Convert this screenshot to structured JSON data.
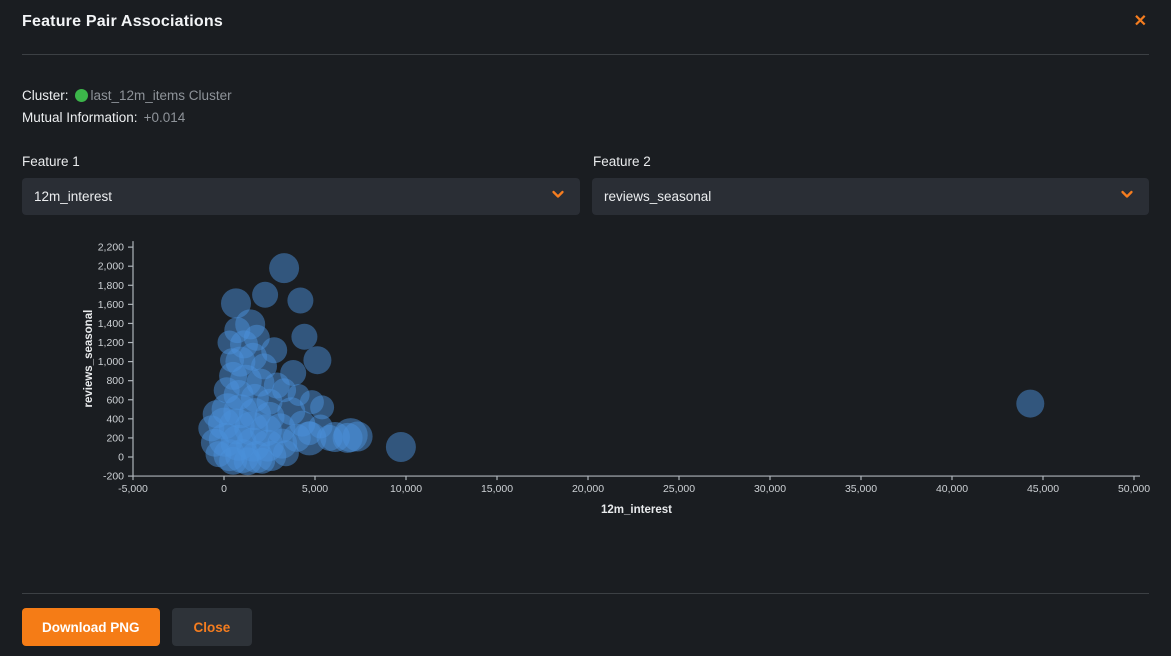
{
  "header": {
    "title": "Feature Pair Associations",
    "close_icon": "✕"
  },
  "info": {
    "cluster_label": "Cluster:",
    "cluster_dot_color": "#3cb54a",
    "cluster_name": "last_12m_items Cluster",
    "mutual_info_label": "Mutual Information:",
    "mutual_info_value": "+0.014"
  },
  "feature1": {
    "label": "Feature 1",
    "value": "12m_interest"
  },
  "feature2": {
    "label": "Feature 2",
    "value": "reviews_seasonal"
  },
  "footer": {
    "download_label": "Download PNG",
    "close_label": "Close"
  },
  "colors": {
    "background": "#1a1d21",
    "accent_orange": "#f57d1f",
    "button_orange": "#f57c16",
    "secondary_button": "#2e3339",
    "dropdown_bg": "#2a2e35",
    "bubble_blue": "#4a90d9",
    "axis_gray": "#aeb4ba",
    "tick_label_gray": "#cdd1d5",
    "muted_text": "#8e9399"
  },
  "chart_data": {
    "type": "scatter",
    "title": "",
    "xlabel": "12m_interest",
    "ylabel": "reviews_seasonal",
    "xlim": [
      -5000,
      50000
    ],
    "ylim": [
      -200,
      2200
    ],
    "x_tick_step": 5000,
    "y_tick_step": 200,
    "grid": false,
    "legend": false,
    "point_style": {
      "fill": "#4a90d9",
      "opacity": 0.5
    },
    "points_format": "[x, y, radius_px]",
    "points": [
      [
        3300,
        1980,
        15
      ],
      [
        2260,
        1700,
        13
      ],
      [
        660,
        1610,
        15
      ],
      [
        4200,
        1640,
        13
      ],
      [
        1440,
        1390,
        15
      ],
      [
        730,
        1330,
        13
      ],
      [
        4420,
        1260,
        13
      ],
      [
        2760,
        1120,
        13
      ],
      [
        5130,
        1015,
        14
      ],
      [
        440,
        1015,
        12
      ],
      [
        1100,
        1180,
        14
      ],
      [
        1800,
        1250,
        13
      ],
      [
        300,
        1200,
        12
      ],
      [
        900,
        1000,
        15
      ],
      [
        1600,
        1050,
        14
      ],
      [
        2200,
        950,
        13
      ],
      [
        3800,
        880,
        13
      ],
      [
        4830,
        575,
        12
      ],
      [
        5390,
        520,
        12
      ],
      [
        500,
        850,
        14
      ],
      [
        1200,
        800,
        16
      ],
      [
        2000,
        780,
        14
      ],
      [
        2900,
        750,
        13
      ],
      [
        3300,
        700,
        12
      ],
      [
        4100,
        650,
        11
      ],
      [
        150,
        700,
        13
      ],
      [
        800,
        650,
        15
      ],
      [
        1700,
        620,
        14
      ],
      [
        2500,
        580,
        13
      ],
      [
        -400,
        450,
        14
      ],
      [
        200,
        500,
        16
      ],
      [
        900,
        480,
        17
      ],
      [
        1700,
        450,
        16
      ],
      [
        2500,
        420,
        15
      ],
      [
        -700,
        300,
        13
      ],
      [
        0,
        350,
        16
      ],
      [
        700,
        320,
        18
      ],
      [
        1500,
        300,
        17
      ],
      [
        2300,
        280,
        16
      ],
      [
        3100,
        300,
        15
      ],
      [
        -500,
        150,
        14
      ],
      [
        100,
        180,
        17
      ],
      [
        800,
        150,
        18
      ],
      [
        1600,
        130,
        17
      ],
      [
        2400,
        120,
        16
      ],
      [
        3200,
        140,
        15
      ],
      [
        -300,
        30,
        13
      ],
      [
        300,
        20,
        16
      ],
      [
        1000,
        10,
        17
      ],
      [
        1800,
        0,
        16
      ],
      [
        2600,
        10,
        15
      ],
      [
        3400,
        40,
        13
      ],
      [
        500,
        -40,
        14
      ],
      [
        1300,
        -45,
        14
      ],
      [
        2100,
        -40,
        13
      ],
      [
        4000,
        200,
        14
      ],
      [
        4300,
        350,
        13
      ],
      [
        3700,
        480,
        14
      ],
      [
        4700,
        250,
        12
      ],
      [
        4690,
        195,
        17
      ],
      [
        5800,
        200,
        13
      ],
      [
        6100,
        210,
        15
      ],
      [
        6790,
        200,
        15
      ],
      [
        7340,
        215,
        15
      ],
      [
        6960,
        230,
        17
      ],
      [
        5300,
        320,
        12
      ],
      [
        9720,
        105,
        15
      ],
      [
        44300,
        560,
        14
      ]
    ]
  }
}
